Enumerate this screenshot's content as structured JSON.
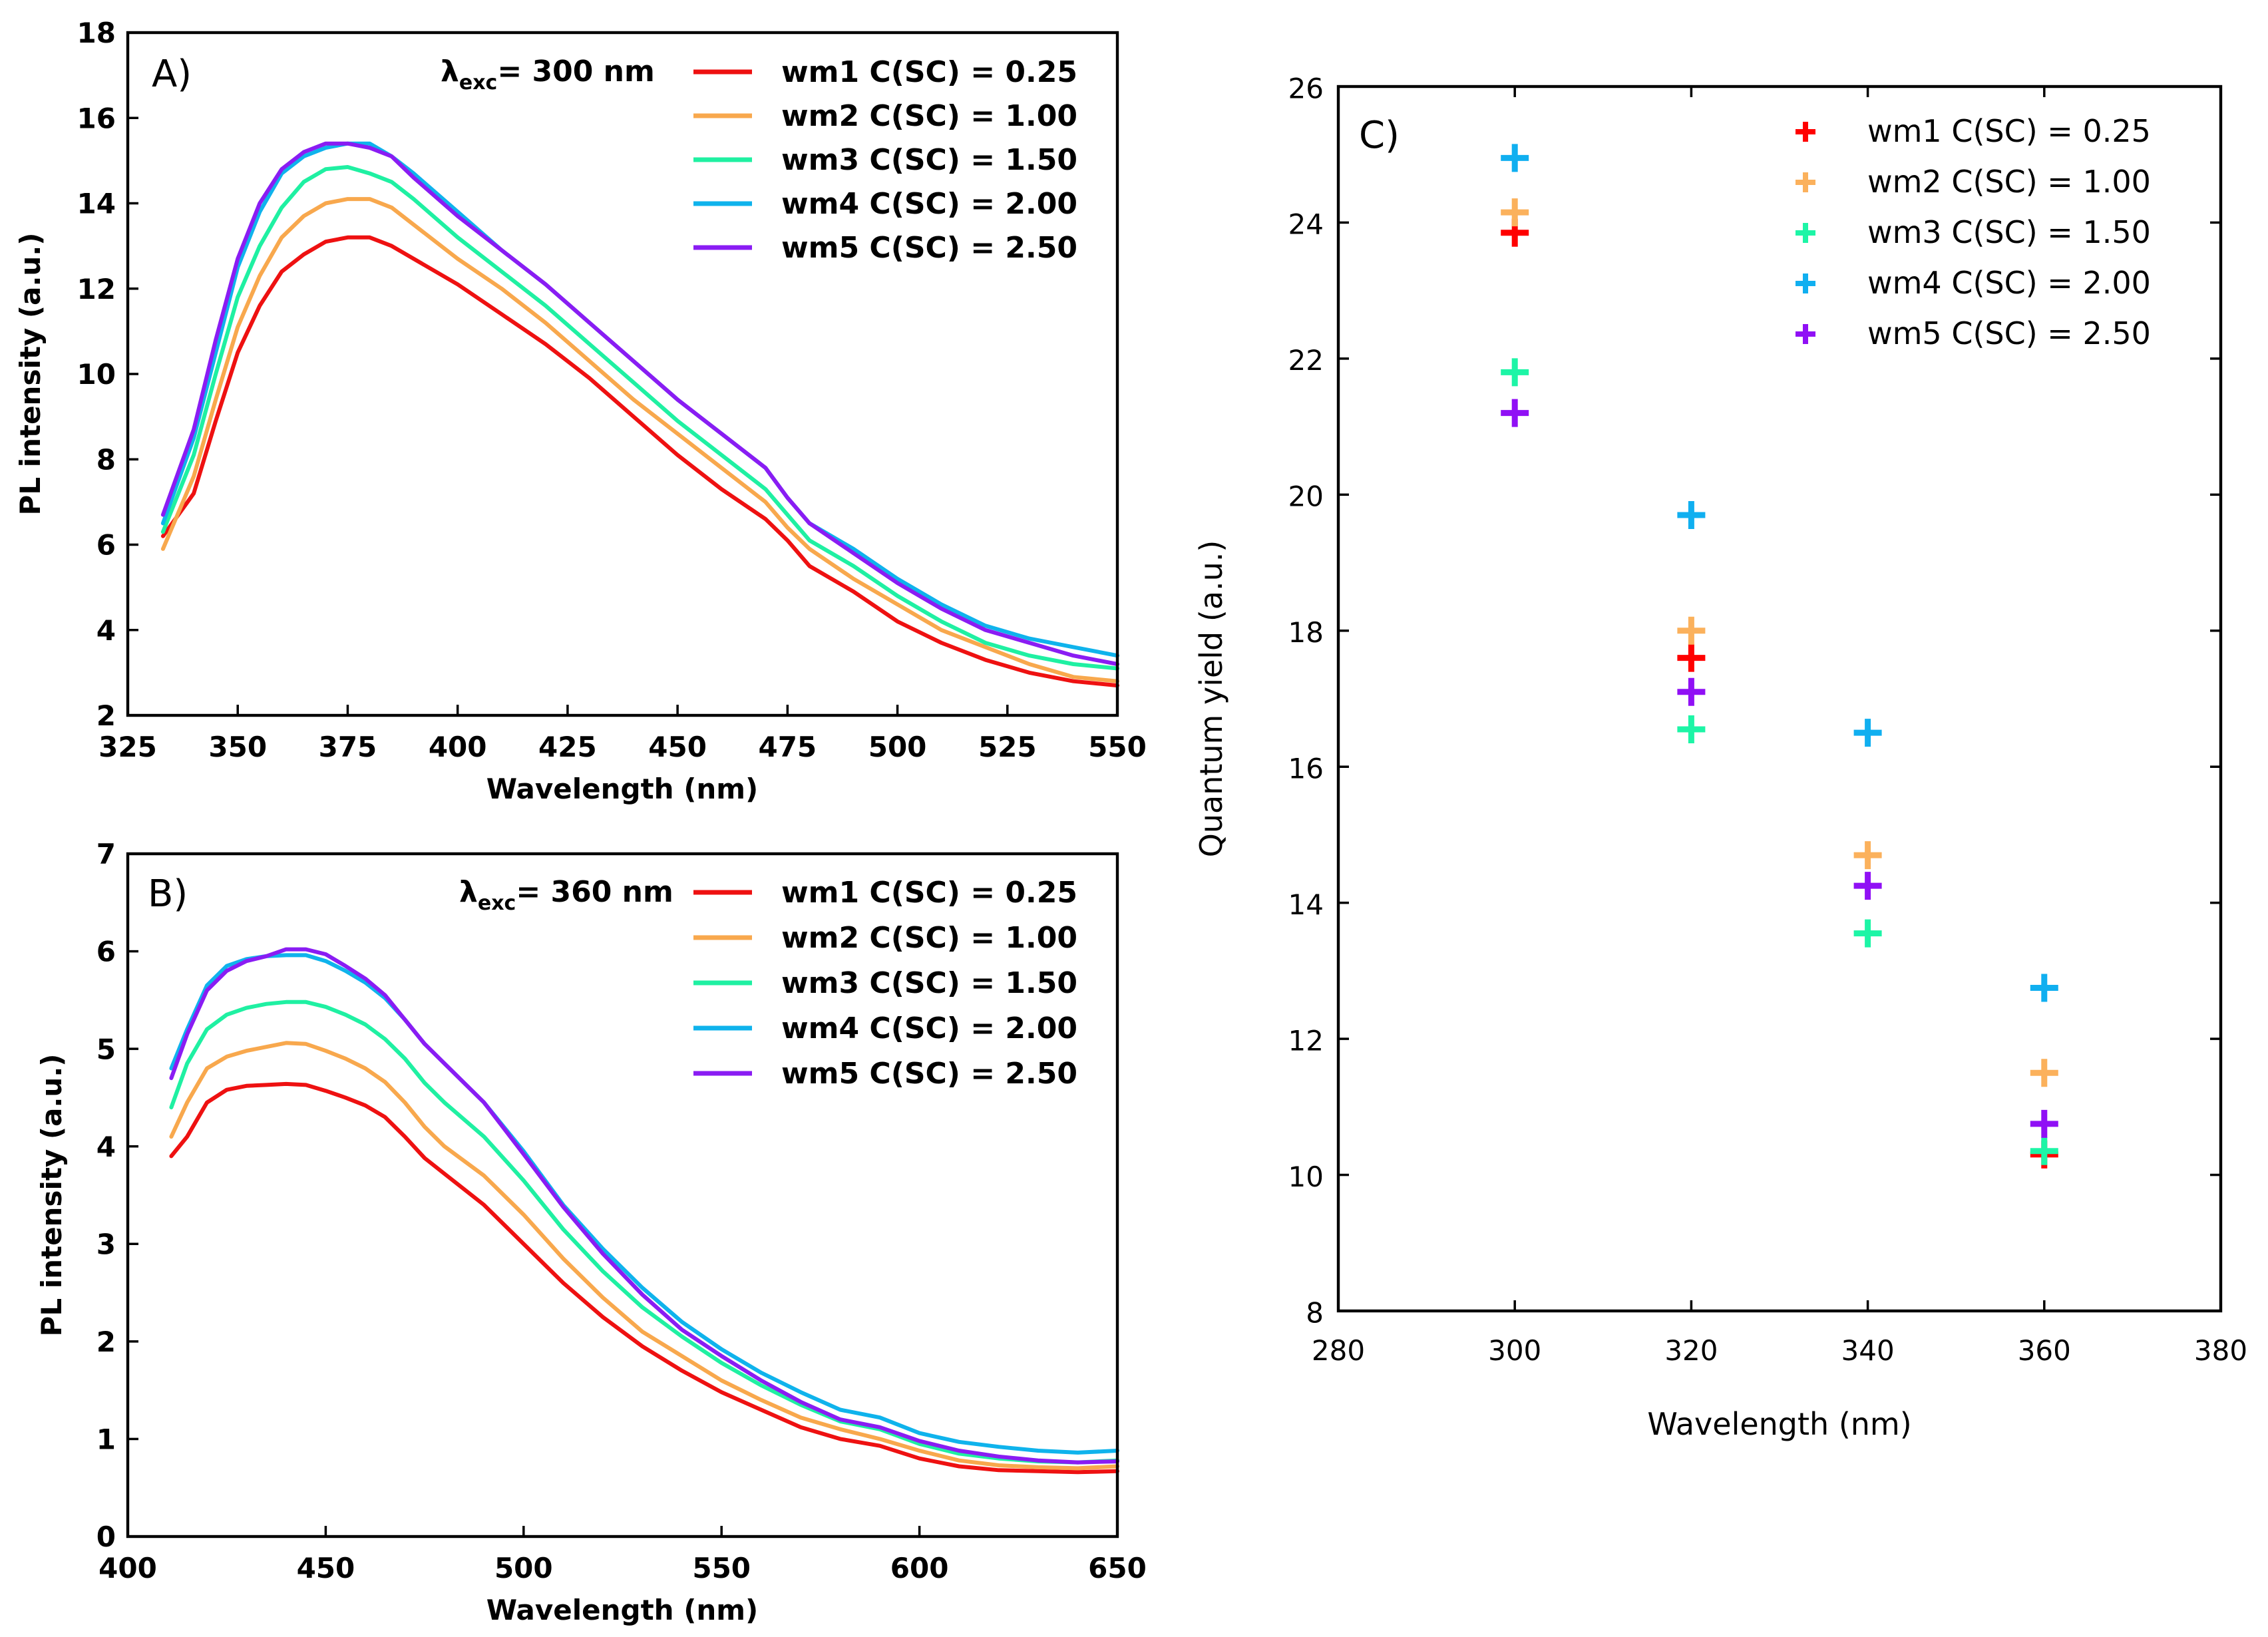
{
  "chart_data": [
    {
      "panel": "A)",
      "type": "line",
      "annotation": {
        "base": "λ",
        "sub": "exc",
        "text": "= 300 nm"
      },
      "xlabel": "Wavelength (nm)",
      "ylabel": "PL intensity (a.u.)",
      "xlim": [
        325,
        550
      ],
      "ylim": [
        2,
        18
      ],
      "xticks": [
        325,
        350,
        375,
        400,
        425,
        450,
        475,
        500,
        525,
        550
      ],
      "yticks": [
        2,
        4,
        6,
        8,
        10,
        12,
        14,
        16,
        18
      ],
      "legend_position": "top-right",
      "x": [
        333,
        340,
        345,
        350,
        355,
        360,
        365,
        370,
        375,
        380,
        385,
        390,
        400,
        410,
        420,
        430,
        440,
        450,
        460,
        470,
        475,
        480,
        490,
        500,
        510,
        520,
        530,
        540,
        550
      ],
      "series": [
        {
          "name": "wm1 C(SC) = 0.25",
          "color": "#ee1111",
          "values": [
            6.2,
            7.2,
            8.9,
            10.5,
            11.6,
            12.4,
            12.8,
            13.1,
            13.2,
            13.2,
            13.0,
            12.7,
            12.1,
            11.4,
            10.7,
            9.9,
            9.0,
            8.1,
            7.3,
            6.6,
            6.1,
            5.5,
            4.9,
            4.2,
            3.7,
            3.3,
            3.0,
            2.8,
            2.7
          ]
        },
        {
          "name": "wm2 C(SC) = 1.00",
          "color": "#f8a84d",
          "values": [
            5.9,
            7.6,
            9.4,
            11.1,
            12.3,
            13.2,
            13.7,
            14.0,
            14.1,
            14.1,
            13.9,
            13.5,
            12.7,
            12.0,
            11.2,
            10.3,
            9.4,
            8.6,
            7.8,
            7.0,
            6.4,
            5.9,
            5.2,
            4.6,
            4.0,
            3.6,
            3.2,
            2.9,
            2.8
          ]
        },
        {
          "name": "wm3 C(SC) = 1.50",
          "color": "#1ff0a2",
          "values": [
            6.3,
            8.1,
            10.0,
            11.8,
            13.0,
            13.9,
            14.5,
            14.8,
            14.85,
            14.7,
            14.5,
            14.1,
            13.2,
            12.4,
            11.6,
            10.7,
            9.8,
            8.9,
            8.1,
            7.3,
            6.7,
            6.1,
            5.5,
            4.8,
            4.2,
            3.7,
            3.4,
            3.2,
            3.1
          ]
        },
        {
          "name": "wm4 C(SC) = 2.00",
          "color": "#0fb3ec",
          "values": [
            6.5,
            8.5,
            10.5,
            12.5,
            13.8,
            14.7,
            15.1,
            15.3,
            15.4,
            15.4,
            15.1,
            14.7,
            13.8,
            12.9,
            12.1,
            11.2,
            10.3,
            9.4,
            8.6,
            7.8,
            7.1,
            6.5,
            5.9,
            5.2,
            4.6,
            4.1,
            3.8,
            3.6,
            3.4
          ]
        },
        {
          "name": "wm5 C(SC) = 2.50",
          "color": "#8a1cf3",
          "values": [
            6.7,
            8.7,
            10.8,
            12.7,
            14.0,
            14.8,
            15.2,
            15.4,
            15.4,
            15.3,
            15.1,
            14.6,
            13.7,
            12.9,
            12.1,
            11.2,
            10.3,
            9.4,
            8.6,
            7.8,
            7.1,
            6.5,
            5.8,
            5.1,
            4.5,
            4.0,
            3.7,
            3.4,
            3.2
          ]
        }
      ]
    },
    {
      "panel": "B)",
      "type": "line",
      "annotation": {
        "base": "λ",
        "sub": "exc",
        "text": "= 360 nm"
      },
      "xlabel": "Wavelength (nm)",
      "ylabel": "PL intensity (a.u.)",
      "xlim": [
        400,
        650
      ],
      "ylim": [
        0,
        7
      ],
      "xticks": [
        400,
        450,
        500,
        550,
        600,
        650
      ],
      "yticks": [
        0,
        1,
        2,
        3,
        4,
        5,
        6,
        7
      ],
      "legend_position": "top-right",
      "x": [
        411,
        415,
        420,
        425,
        430,
        435,
        440,
        445,
        450,
        455,
        460,
        465,
        470,
        475,
        480,
        490,
        500,
        510,
        520,
        530,
        540,
        550,
        560,
        570,
        580,
        590,
        600,
        610,
        620,
        630,
        640,
        650
      ],
      "series": [
        {
          "name": "wm1 C(SC) = 0.25",
          "color": "#ee1111",
          "values": [
            3.9,
            4.1,
            4.45,
            4.58,
            4.62,
            4.63,
            4.64,
            4.63,
            4.57,
            4.5,
            4.42,
            4.3,
            4.1,
            3.88,
            3.72,
            3.4,
            3.0,
            2.6,
            2.25,
            1.95,
            1.7,
            1.48,
            1.3,
            1.12,
            1.0,
            0.93,
            0.8,
            0.72,
            0.68,
            0.67,
            0.66,
            0.67
          ]
        },
        {
          "name": "wm2 C(SC) = 1.00",
          "color": "#f8a84d",
          "values": [
            4.1,
            4.45,
            4.8,
            4.92,
            4.98,
            5.02,
            5.06,
            5.05,
            4.98,
            4.9,
            4.8,
            4.66,
            4.45,
            4.2,
            4.0,
            3.7,
            3.3,
            2.85,
            2.45,
            2.1,
            1.85,
            1.6,
            1.4,
            1.22,
            1.1,
            1.0,
            0.88,
            0.78,
            0.73,
            0.71,
            0.7,
            0.72
          ]
        },
        {
          "name": "wm3 C(SC) = 1.50",
          "color": "#1ff0a2",
          "values": [
            4.4,
            4.85,
            5.2,
            5.35,
            5.42,
            5.46,
            5.48,
            5.48,
            5.43,
            5.35,
            5.25,
            5.1,
            4.9,
            4.65,
            4.45,
            4.1,
            3.65,
            3.15,
            2.72,
            2.35,
            2.05,
            1.78,
            1.55,
            1.35,
            1.18,
            1.1,
            0.95,
            0.85,
            0.8,
            0.77,
            0.76,
            0.78
          ]
        },
        {
          "name": "wm4 C(SC) = 2.00",
          "color": "#0fb3ec",
          "values": [
            4.8,
            5.2,
            5.65,
            5.85,
            5.92,
            5.95,
            5.96,
            5.96,
            5.9,
            5.8,
            5.68,
            5.52,
            5.3,
            5.05,
            4.85,
            4.45,
            3.95,
            3.4,
            2.95,
            2.55,
            2.2,
            1.92,
            1.68,
            1.48,
            1.3,
            1.22,
            1.06,
            0.97,
            0.92,
            0.88,
            0.86,
            0.88
          ]
        },
        {
          "name": "wm5 C(SC) = 2.50",
          "color": "#8a1cf3",
          "values": [
            4.7,
            5.15,
            5.6,
            5.8,
            5.9,
            5.95,
            6.02,
            6.02,
            5.97,
            5.85,
            5.72,
            5.55,
            5.3,
            5.05,
            4.85,
            4.45,
            3.92,
            3.38,
            2.9,
            2.48,
            2.12,
            1.85,
            1.6,
            1.38,
            1.2,
            1.12,
            0.98,
            0.88,
            0.82,
            0.78,
            0.76,
            0.77
          ]
        }
      ]
    },
    {
      "panel": "C)",
      "type": "scatter",
      "xlabel": "Wavelength (nm)",
      "ylabel": "Quantum yield (a.u.)",
      "xlim": [
        280,
        380
      ],
      "ylim": [
        8,
        26
      ],
      "xticks": [
        280,
        300,
        320,
        340,
        360,
        380
      ],
      "yticks": [
        8,
        10,
        12,
        14,
        16,
        18,
        20,
        22,
        24,
        26
      ],
      "legend_position": "top-right",
      "x": [
        300,
        320,
        340,
        360
      ],
      "series": [
        {
          "name": "wm1 C(SC) = 0.25",
          "color": "#ff0000",
          "values": [
            23.85,
            17.6,
            null,
            10.3
          ]
        },
        {
          "name": "wm2 C(SC) = 1.00",
          "color": "#fbb15c",
          "values": [
            24.15,
            18.0,
            14.7,
            11.5
          ]
        },
        {
          "name": "wm3 C(SC) = 1.50",
          "color": "#1df5a6",
          "values": [
            21.8,
            16.55,
            13.55,
            10.35
          ]
        },
        {
          "name": "wm4 C(SC) = 2.00",
          "color": "#10aff0",
          "values": [
            24.95,
            19.7,
            16.5,
            12.75
          ]
        },
        {
          "name": "wm5 C(SC) = 2.50",
          "color": "#9010f5",
          "values": [
            21.2,
            17.1,
            14.25,
            10.75
          ]
        }
      ]
    }
  ]
}
